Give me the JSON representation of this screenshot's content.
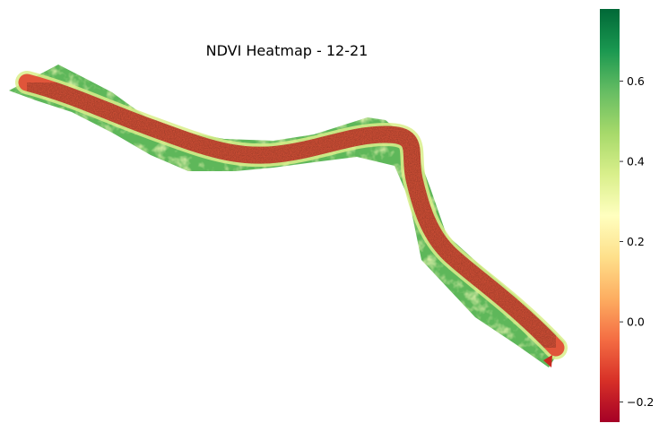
{
  "chart_data": {
    "type": "heatmap",
    "title": "NDVI Heatmap - 12-21",
    "xlabel": "",
    "ylabel": "",
    "axes_visible": false,
    "grid": false,
    "colormap": "RdYlGn",
    "colorbar": {
      "location": "right",
      "range": [
        -0.25,
        0.78
      ],
      "ticks": [
        -0.2,
        0.0,
        0.2,
        0.4,
        0.6
      ],
      "tick_labels": [
        "−0.2",
        "0.0",
        "0.2",
        "0.4",
        "0.6"
      ],
      "colors": [
        "#a50026",
        "#d73027",
        "#f46d43",
        "#fdae61",
        "#fee08b",
        "#ffffbf",
        "#d9ef8b",
        "#a6d96a",
        "#66bd63",
        "#1a9850",
        "#006837"
      ]
    },
    "field": {
      "description_values": {
        "channel_ndvi_approx": -0.05,
        "bank_ndvi_range": [
          0.35,
          0.75
        ],
        "bank_ndvi_typical": 0.6
      }
    }
  }
}
